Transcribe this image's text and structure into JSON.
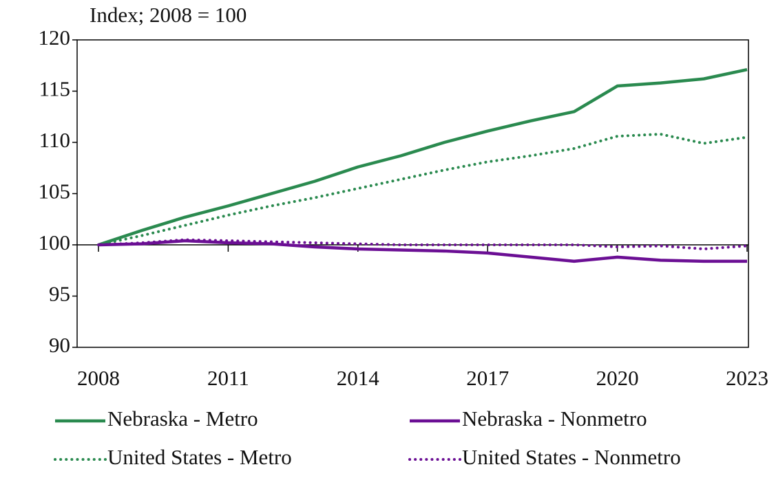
{
  "chart_data": {
    "type": "line",
    "y_axis_label": "Index; 2008 = 100",
    "x": [
      2008,
      2009,
      2010,
      2011,
      2012,
      2013,
      2014,
      2015,
      2016,
      2017,
      2018,
      2019,
      2020,
      2021,
      2022,
      2023
    ],
    "series": [
      {
        "name": "Nebraska - Metro",
        "color": "#2a8a4f",
        "style": "solid",
        "values": [
          100,
          101.4,
          102.7,
          103.8,
          105.0,
          106.2,
          107.6,
          108.7,
          110.0,
          111.1,
          112.1,
          113.0,
          115.5,
          115.8,
          116.2,
          117.1
        ]
      },
      {
        "name": "Nebraska - Nonmetro",
        "color": "#6b0f94",
        "style": "solid",
        "values": [
          100,
          100.1,
          100.4,
          100.2,
          100.1,
          99.8,
          99.6,
          99.5,
          99.4,
          99.2,
          98.8,
          98.4,
          98.8,
          98.5,
          98.4,
          98.4
        ]
      },
      {
        "name": "United States - Metro",
        "color": "#2a8a4f",
        "style": "dotted",
        "values": [
          100,
          100.9,
          101.9,
          102.9,
          103.8,
          104.6,
          105.5,
          106.4,
          107.3,
          108.1,
          108.7,
          109.4,
          110.6,
          110.8,
          109.9,
          110.5
        ]
      },
      {
        "name": "United States - Nonmetro",
        "color": "#6b0f94",
        "style": "dotted",
        "values": [
          100,
          100.2,
          100.5,
          100.4,
          100.3,
          100.2,
          100.1,
          100.0,
          100.0,
          100.0,
          100.0,
          100.0,
          99.8,
          99.9,
          99.6,
          99.9
        ]
      }
    ],
    "xlim": [
      2008,
      2023
    ],
    "xticks": [
      2008,
      2011,
      2014,
      2017,
      2020,
      2023
    ],
    "ylim": [
      90,
      120
    ],
    "yticks": [
      90,
      95,
      100,
      105,
      110,
      115,
      120
    ],
    "baseline": 100,
    "legend": "bottom"
  }
}
